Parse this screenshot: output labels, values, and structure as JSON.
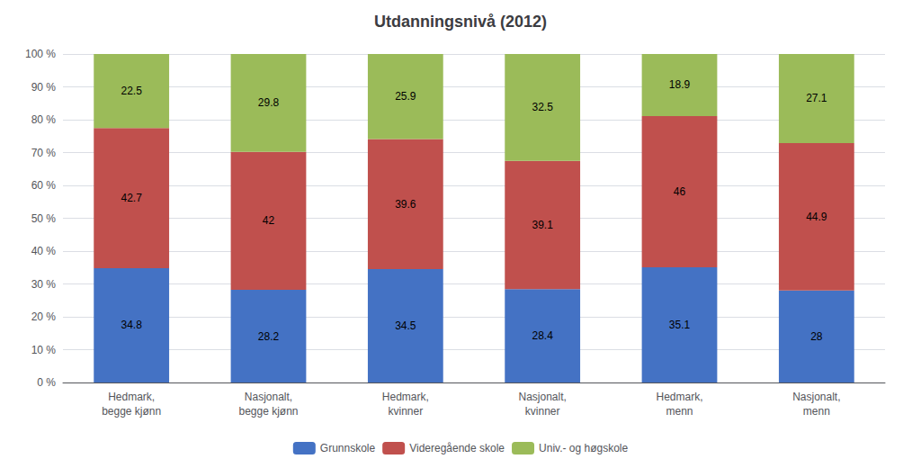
{
  "chart_data": {
    "type": "bar",
    "title": "Utdanningsnivå (2012)",
    "categories": [
      "Hedmark,\nbegge kjønn",
      "Nasjonalt,\nbegge kjønn",
      "Hedmark,\nkvinner",
      "Nasjonalt,\nkvinner",
      "Hedmark,\nmenn",
      "Nasjonalt,\nmenn"
    ],
    "series": [
      {
        "name": "Grunnskole",
        "color": "#4472C4",
        "values": [
          34.8,
          28.2,
          34.5,
          28.4,
          35.1,
          28.0
        ]
      },
      {
        "name": "Videregående skole",
        "color": "#C0504D",
        "values": [
          42.7,
          42.0,
          39.6,
          39.1,
          46.0,
          44.9
        ]
      },
      {
        "name": "Univ.- og høgskole",
        "color": "#9BBB59",
        "values": [
          22.5,
          29.8,
          25.9,
          32.5,
          18.9,
          27.1
        ]
      }
    ],
    "stacked": true,
    "data_labels": true,
    "ylim": [
      0,
      100
    ],
    "yticks": [
      {
        "value": 0,
        "label": "0 %"
      },
      {
        "value": 10,
        "label": "10 %"
      },
      {
        "value": 20,
        "label": "20 %"
      },
      {
        "value": 30,
        "label": "30 %"
      },
      {
        "value": 40,
        "label": "40 %"
      },
      {
        "value": 50,
        "label": "50 %"
      },
      {
        "value": 60,
        "label": "60 %"
      },
      {
        "value": 70,
        "label": "70 %"
      },
      {
        "value": 80,
        "label": "80 %"
      },
      {
        "value": 90,
        "label": "90 %"
      },
      {
        "value": 100,
        "label": "100 %"
      }
    ],
    "grid": true,
    "legend": "bottom"
  }
}
